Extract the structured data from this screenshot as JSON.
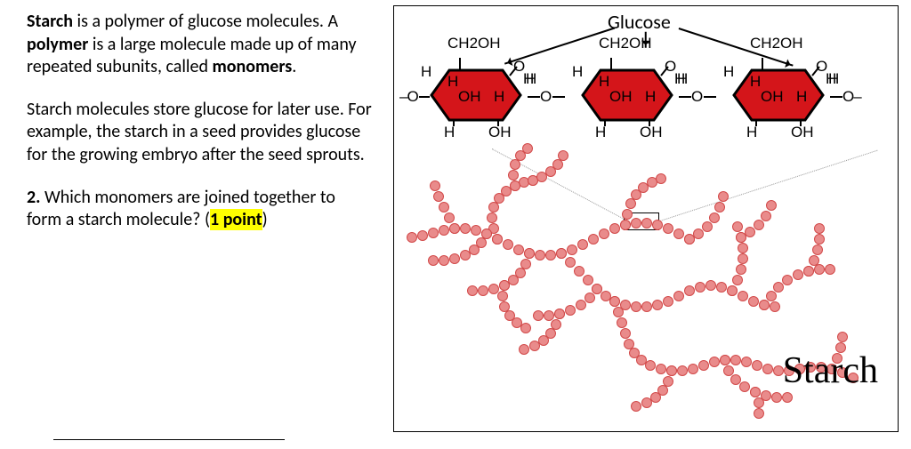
{
  "text": {
    "p1_a": "Starch",
    "p1_b": " is a polymer of glucose molecules. A ",
    "p1_c": "polymer",
    "p1_d": " is a large molecule made up of many repeated subunits, called ",
    "p1_e": "monomers",
    "p1_f": ".",
    "p2": "Starch molecules store glucose for later use. For example, the starch in a seed provides glucose for the growing embryo after the seed sprouts.",
    "q_a": "2.",
    "q_b": " Which monomers are joined together to form a starch molecule? (",
    "q_c": "1 point",
    "q_d": ")"
  },
  "figure": {
    "glucose_label": "Glucose",
    "starch_label": "Starch",
    "ch2oh_1": "CH",
    "ch2oh_2": "2",
    "ch2oh_3": "OH",
    "H": "H",
    "OH": "OH",
    "O": "O",
    "link_dash_o_left": "-O",
    "link_o_dash_right": "O-",
    "colors": {
      "hex_fill": "#d4151a",
      "hex_stroke": "#000000",
      "bead_fill": "#e98b8b",
      "bead_stroke": "#d24a4a",
      "highlight": "#ffff00",
      "dotted": "#999999"
    },
    "bead_radius": 5.5
  }
}
